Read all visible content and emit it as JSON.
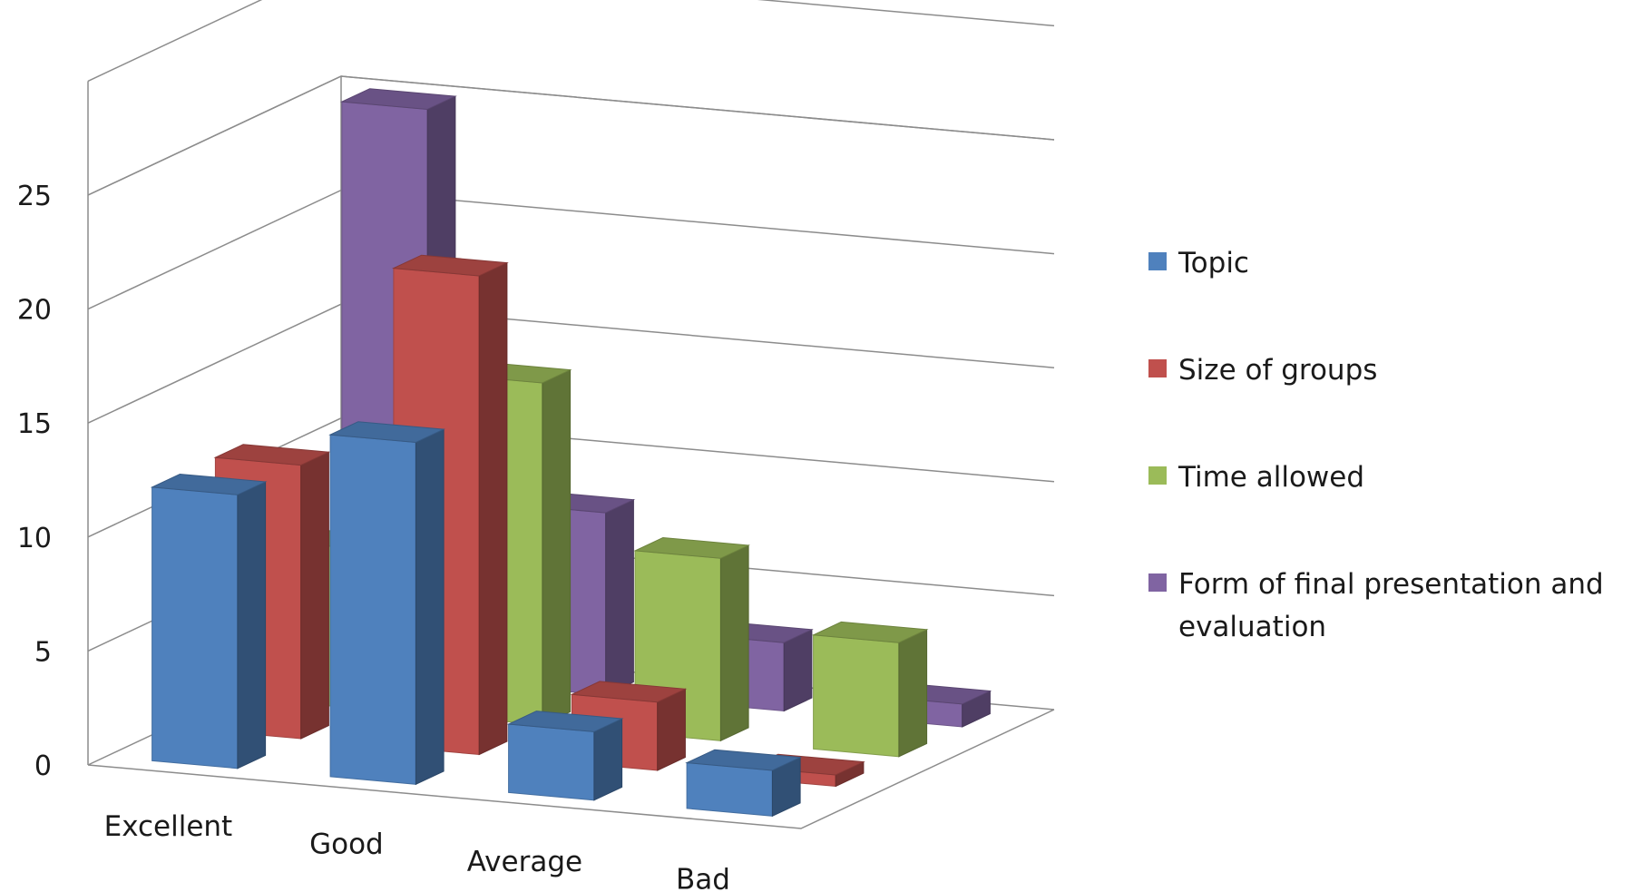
{
  "chart_data": {
    "type": "bar",
    "three_d": true,
    "categories": [
      "Excellent",
      "Good",
      "Average",
      "Bad"
    ],
    "series": [
      {
        "name": "Topic",
        "values": [
          12,
          15,
          3,
          2
        ],
        "color": "#4f81bd"
      },
      {
        "name": "Size of groups",
        "values": [
          12,
          21,
          3,
          0.5
        ],
        "color": "#c0504d"
      },
      {
        "name": "Time allowed",
        "values": [
          7,
          15,
          8,
          5
        ],
        "color": "#9bbb59"
      },
      {
        "name": "Form of final presentation and evaluation",
        "values": [
          25,
          8,
          3,
          1
        ],
        "color": "#8064a2"
      }
    ],
    "yticks": [
      "0",
      "5",
      "10",
      "15",
      "20",
      "25"
    ],
    "ylim": [
      0,
      25
    ],
    "grid": true,
    "legend": "right",
    "legend_lines": [
      [
        "Topic"
      ],
      [
        "Size of groups"
      ],
      [
        "Time allowed"
      ],
      [
        "Form of final presentation and",
        "evaluation"
      ]
    ]
  }
}
